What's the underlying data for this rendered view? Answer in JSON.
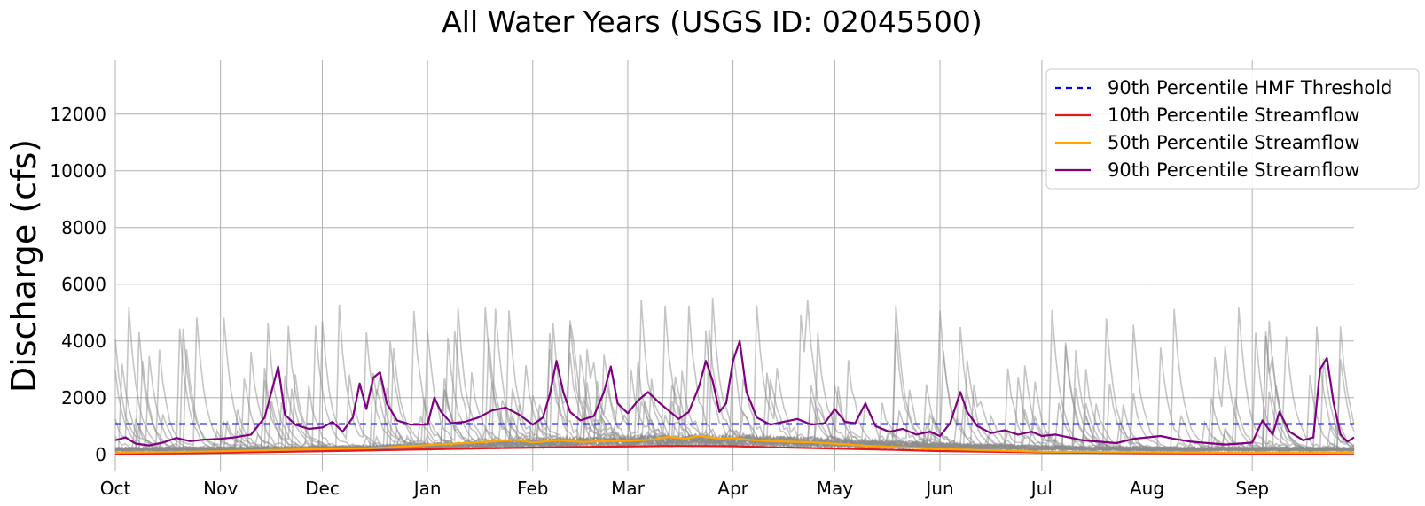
{
  "chart_data": {
    "type": "line",
    "title": "All Water Years (USGS ID: 02045500)",
    "xlabel": "",
    "ylabel": "Discharge (cfs)",
    "xlim": [
      0,
      365
    ],
    "ylim": [
      -600,
      13900
    ],
    "grid": true,
    "legend_position": "top-right",
    "x_ticks": [
      {
        "label": "Oct",
        "day": 0
      },
      {
        "label": "Nov",
        "day": 31
      },
      {
        "label": "Dec",
        "day": 61
      },
      {
        "label": "Jan",
        "day": 92
      },
      {
        "label": "Feb",
        "day": 123
      },
      {
        "label": "Mar",
        "day": 151
      },
      {
        "label": "Apr",
        "day": 182
      },
      {
        "label": "May",
        "day": 212
      },
      {
        "label": "Jun",
        "day": 243
      },
      {
        "label": "Jul",
        "day": 273
      },
      {
        "label": "Aug",
        "day": 304
      },
      {
        "label": "Sep",
        "day": 335
      }
    ],
    "y_ticks": [
      0,
      2000,
      4000,
      6000,
      8000,
      10000,
      12000
    ],
    "threshold": {
      "name": "90th Percentile HMF Threshold",
      "value": 1070,
      "color": "#0000ff",
      "style": "dashed"
    },
    "series": [
      {
        "name": "10th Percentile Streamflow",
        "color": "#e41a1c",
        "points": [
          [
            0,
            20
          ],
          [
            20,
            40
          ],
          [
            45,
            80
          ],
          [
            70,
            130
          ],
          [
            92,
            180
          ],
          [
            110,
            220
          ],
          [
            123,
            240
          ],
          [
            140,
            270
          ],
          [
            151,
            280
          ],
          [
            165,
            300
          ],
          [
            182,
            290
          ],
          [
            195,
            250
          ],
          [
            212,
            210
          ],
          [
            230,
            160
          ],
          [
            243,
            120
          ],
          [
            260,
            90
          ],
          [
            273,
            70
          ],
          [
            290,
            55
          ],
          [
            304,
            45
          ],
          [
            320,
            35
          ],
          [
            335,
            30
          ],
          [
            350,
            25
          ],
          [
            365,
            40
          ]
        ]
      },
      {
        "name": "50th Percentile Streamflow",
        "color": "#ffa500",
        "points": [
          [
            0,
            60
          ],
          [
            15,
            80
          ],
          [
            31,
            110
          ],
          [
            45,
            150
          ],
          [
            61,
            190
          ],
          [
            75,
            220
          ],
          [
            92,
            330
          ],
          [
            100,
            380
          ],
          [
            110,
            450
          ],
          [
            118,
            520
          ],
          [
            123,
            420
          ],
          [
            130,
            500
          ],
          [
            138,
            440
          ],
          [
            145,
            470
          ],
          [
            151,
            480
          ],
          [
            158,
            520
          ],
          [
            163,
            620
          ],
          [
            168,
            560
          ],
          [
            172,
            650
          ],
          [
            178,
            560
          ],
          [
            182,
            580
          ],
          [
            188,
            500
          ],
          [
            195,
            460
          ],
          [
            205,
            430
          ],
          [
            212,
            380
          ],
          [
            222,
            300
          ],
          [
            230,
            260
          ],
          [
            243,
            190
          ],
          [
            255,
            150
          ],
          [
            265,
            120
          ],
          [
            273,
            95
          ],
          [
            285,
            85
          ],
          [
            300,
            75
          ],
          [
            315,
            70
          ],
          [
            335,
            60
          ],
          [
            350,
            55
          ],
          [
            365,
            60
          ]
        ]
      },
      {
        "name": "90th Percentile Streamflow",
        "color": "#800080",
        "points": [
          [
            0,
            500
          ],
          [
            3,
            600
          ],
          [
            6,
            380
          ],
          [
            10,
            320
          ],
          [
            14,
            420
          ],
          [
            18,
            580
          ],
          [
            22,
            470
          ],
          [
            26,
            520
          ],
          [
            31,
            550
          ],
          [
            35,
            600
          ],
          [
            40,
            700
          ],
          [
            44,
            1300
          ],
          [
            46,
            2200
          ],
          [
            48,
            3100
          ],
          [
            50,
            1400
          ],
          [
            53,
            1050
          ],
          [
            57,
            900
          ],
          [
            61,
            950
          ],
          [
            64,
            1150
          ],
          [
            67,
            800
          ],
          [
            70,
            1300
          ],
          [
            72,
            2500
          ],
          [
            74,
            1600
          ],
          [
            76,
            2700
          ],
          [
            78,
            2900
          ],
          [
            80,
            1800
          ],
          [
            83,
            1200
          ],
          [
            87,
            1050
          ],
          [
            92,
            1050
          ],
          [
            94,
            2000
          ],
          [
            96,
            1500
          ],
          [
            99,
            1100
          ],
          [
            103,
            1150
          ],
          [
            107,
            1300
          ],
          [
            111,
            1550
          ],
          [
            115,
            1650
          ],
          [
            119,
            1400
          ],
          [
            123,
            1050
          ],
          [
            126,
            1300
          ],
          [
            128,
            2100
          ],
          [
            130,
            3300
          ],
          [
            132,
            2200
          ],
          [
            134,
            1500
          ],
          [
            137,
            1200
          ],
          [
            141,
            1350
          ],
          [
            144,
            2200
          ],
          [
            146,
            3100
          ],
          [
            148,
            1800
          ],
          [
            151,
            1450
          ],
          [
            154,
            1900
          ],
          [
            157,
            2200
          ],
          [
            160,
            1850
          ],
          [
            163,
            1550
          ],
          [
            166,
            1250
          ],
          [
            169,
            1500
          ],
          [
            172,
            2400
          ],
          [
            174,
            3300
          ],
          [
            176,
            2600
          ],
          [
            178,
            1500
          ],
          [
            180,
            1800
          ],
          [
            182,
            3300
          ],
          [
            184,
            4000
          ],
          [
            186,
            2200
          ],
          [
            189,
            1300
          ],
          [
            193,
            1050
          ],
          [
            197,
            1150
          ],
          [
            201,
            1250
          ],
          [
            205,
            1050
          ],
          [
            209,
            1100
          ],
          [
            212,
            1600
          ],
          [
            215,
            1150
          ],
          [
            218,
            1100
          ],
          [
            221,
            1800
          ],
          [
            224,
            1000
          ],
          [
            228,
            800
          ],
          [
            232,
            900
          ],
          [
            236,
            700
          ],
          [
            240,
            800
          ],
          [
            243,
            650
          ],
          [
            246,
            1100
          ],
          [
            249,
            2200
          ],
          [
            251,
            1500
          ],
          [
            254,
            1000
          ],
          [
            258,
            750
          ],
          [
            262,
            850
          ],
          [
            266,
            700
          ],
          [
            270,
            800
          ],
          [
            273,
            650
          ],
          [
            277,
            700
          ],
          [
            281,
            600
          ],
          [
            285,
            500
          ],
          [
            290,
            450
          ],
          [
            295,
            400
          ],
          [
            300,
            550
          ],
          [
            304,
            600
          ],
          [
            308,
            650
          ],
          [
            312,
            550
          ],
          [
            317,
            450
          ],
          [
            322,
            400
          ],
          [
            327,
            350
          ],
          [
            331,
            380
          ],
          [
            335,
            420
          ],
          [
            338,
            1200
          ],
          [
            341,
            700
          ],
          [
            343,
            1500
          ],
          [
            346,
            800
          ],
          [
            350,
            500
          ],
          [
            353,
            600
          ],
          [
            355,
            3000
          ],
          [
            357,
            3400
          ],
          [
            359,
            1800
          ],
          [
            361,
            700
          ],
          [
            363,
            450
          ],
          [
            365,
            600
          ]
        ]
      }
    ]
  }
}
